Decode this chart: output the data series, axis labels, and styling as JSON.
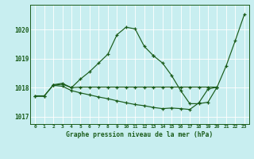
{
  "title": "Graphe pression niveau de la mer (hPa)",
  "bg_color": "#c8eef0",
  "grid_color": "#ffffff",
  "line_color": "#1a5c1a",
  "xlim": [
    -0.5,
    23.5
  ],
  "ylim": [
    1016.75,
    1020.85
  ],
  "yticks": [
    1017,
    1018,
    1019,
    1020
  ],
  "xticks": [
    0,
    1,
    2,
    3,
    4,
    5,
    6,
    7,
    8,
    9,
    10,
    11,
    12,
    13,
    14,
    15,
    16,
    17,
    18,
    19,
    20,
    21,
    22,
    23
  ],
  "series1_x": [
    0,
    1,
    2,
    3,
    4,
    5,
    6,
    7,
    8,
    9,
    10,
    11,
    12,
    13
  ],
  "series1_y": [
    1017.7,
    1017.7,
    1018.1,
    1018.15,
    1018.0,
    1018.3,
    1018.55,
    1018.85,
    1019.15,
    1019.82,
    1020.08,
    1020.02,
    1019.42,
    1019.1
  ],
  "series2_x": [
    13,
    14,
    15,
    16,
    17,
    18,
    19,
    20,
    21,
    22,
    23
  ],
  "series2_y": [
    1019.1,
    1018.85,
    1018.42,
    1017.9,
    1017.45,
    1017.45,
    1017.5,
    1018.02,
    1018.75,
    1019.62,
    1020.52
  ],
  "series3_x": [
    0,
    1,
    2,
    3,
    4,
    5,
    6,
    7,
    8,
    9,
    10,
    11,
    12,
    13,
    14,
    15,
    16,
    17,
    18,
    19,
    20
  ],
  "series3_y": [
    1017.72,
    1017.72,
    1018.08,
    1018.05,
    1017.9,
    1017.82,
    1017.75,
    1017.68,
    1017.62,
    1017.55,
    1017.48,
    1017.42,
    1017.38,
    1017.32,
    1017.28,
    1017.3,
    1017.28,
    1017.25,
    1017.48,
    1017.95,
    1018.02
  ],
  "series4_x": [
    2,
    3,
    4,
    5,
    6,
    7,
    8,
    9,
    10,
    11,
    12,
    13,
    14,
    15,
    16,
    17,
    18,
    19,
    20
  ],
  "series4_y": [
    1018.08,
    1018.12,
    1018.0,
    1018.02,
    1018.02,
    1018.02,
    1018.02,
    1018.02,
    1018.02,
    1018.02,
    1018.02,
    1018.02,
    1018.02,
    1018.02,
    1018.02,
    1018.02,
    1018.02,
    1018.02,
    1018.02
  ]
}
